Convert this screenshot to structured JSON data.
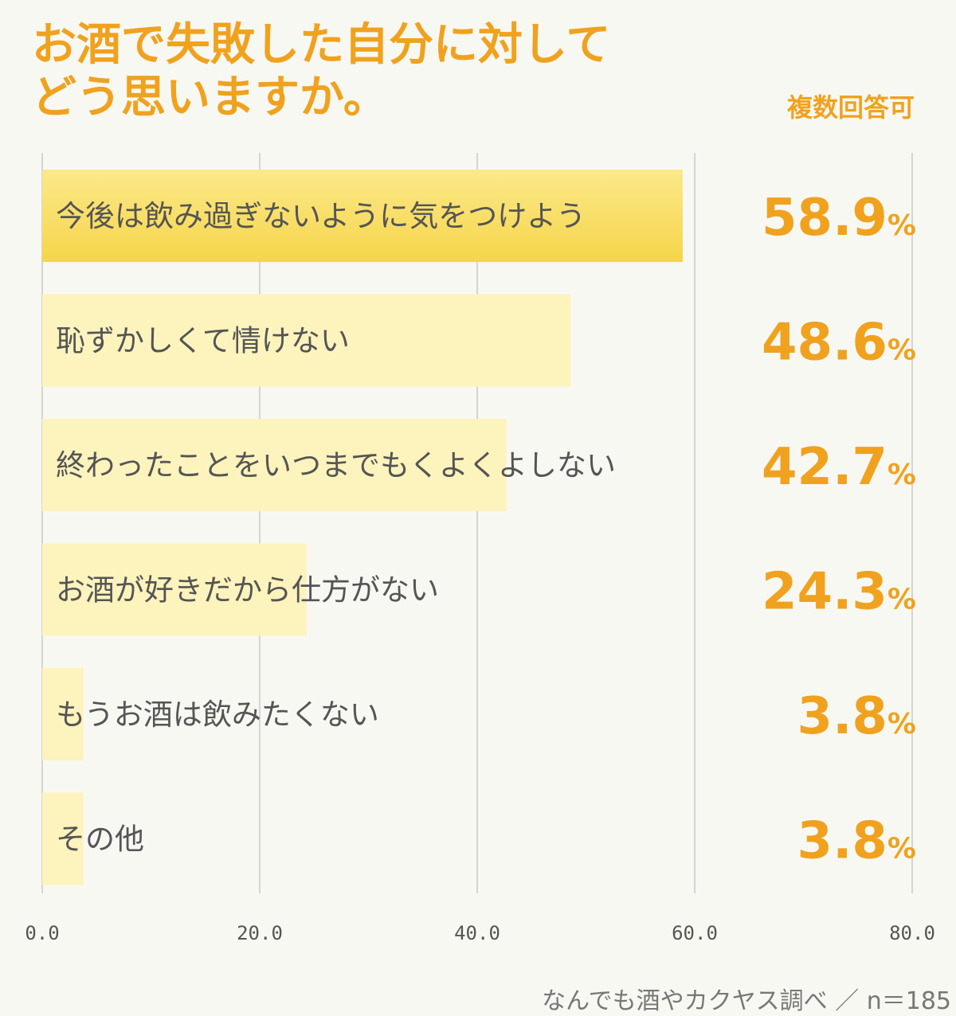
{
  "title_lines": [
    "お酒で失敗した自分に対して",
    "どう思いますか。"
  ],
  "note": "複数回答可",
  "source": "なんでも酒やカクヤス調べ ／ n＝185",
  "colors": {
    "accent": "#f0a21e",
    "bar_top": "#f6d54a",
    "bar": "#fdf3bd",
    "grid": "#d4d4d4",
    "text": "#555555",
    "background": "#f8f8f3"
  },
  "chart_data": {
    "type": "bar",
    "orientation": "horizontal",
    "title": "お酒で失敗した自分に対してどう思いますか。",
    "categories": [
      "今後は飲み過ぎないように気をつけよう",
      "恥ずかしくて情けない",
      "終わったことをいつまでもくよくよしない",
      "お酒が好きだから仕方がない",
      "もうお酒は飲みたくない",
      "その他"
    ],
    "values": [
      58.9,
      48.6,
      42.7,
      24.3,
      3.8,
      3.8
    ],
    "value_labels": [
      "58.9",
      "48.6",
      "42.7",
      "24.3",
      "3.8",
      "3.8"
    ],
    "unit": "%",
    "xlim": [
      0,
      80
    ],
    "xticks": [
      "0.0",
      "20.0",
      "40.0",
      "60.0",
      "80.0"
    ],
    "grid": true
  }
}
